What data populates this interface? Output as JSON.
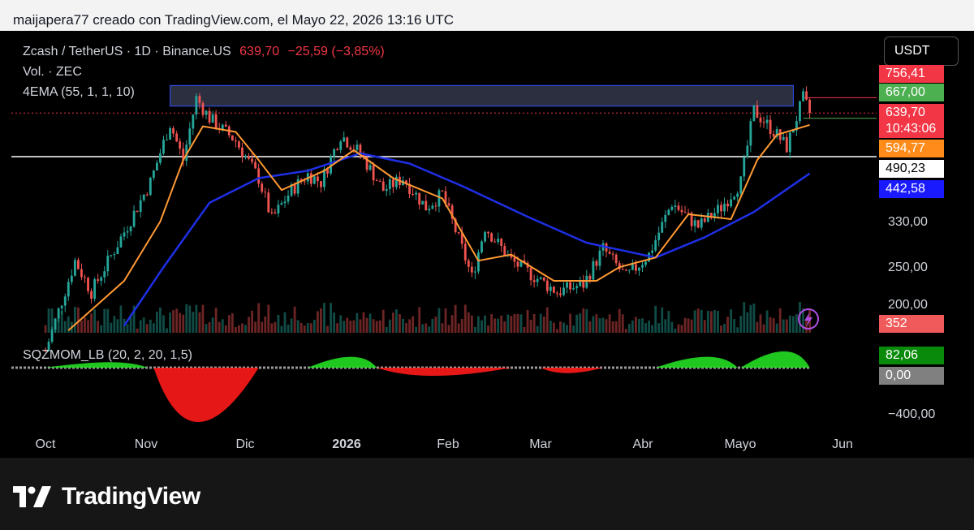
{
  "header": {
    "attribution": "maijapera77 creado con TradingView.com, el Mayo 22, 2026 13:16 UTC"
  },
  "legend": {
    "symbol": "Zcash / TetherUS · 1D · Binance.US",
    "price": "639,70",
    "change": "−25,59 (−3,85%)",
    "volume": "Vol. · ZEC",
    "ema": "4EMA (55, 1, 1, 10)",
    "squeeze": "SQZMOM_LB (20, 2, 20, 1,5)"
  },
  "currency_button": "USDT",
  "price_tags": [
    {
      "label": "756,41",
      "bg": "#f23645",
      "color": "#ffffff"
    },
    {
      "label": "667,00",
      "bg": "#4caf50",
      "color": "#ffffff"
    },
    {
      "label": "639,70",
      "bg": "#f23645",
      "color": "#ffffff"
    },
    {
      "label": "10:43:06",
      "bg": "#f23645",
      "color": "#ffffff"
    },
    {
      "label": "594,77",
      "bg": "#ff8c1a",
      "color": "#ffffff"
    },
    {
      "label": "490,23",
      "bg": "#ffffff",
      "color": "#000000"
    },
    {
      "label": "442,58",
      "bg": "#1a1aff",
      "color": "#ffffff"
    },
    {
      "label": "352",
      "bg": "#f05a5a",
      "color": "#ffffff"
    }
  ],
  "price_axis_ticks": [
    "330,00",
    "250,00",
    "200,00"
  ],
  "osc_tags": [
    {
      "label": "82,06",
      "bg": "#0a8a0a",
      "color": "#ffffff"
    },
    {
      "label": "0,00",
      "bg": "#808080",
      "color": "#ffffff"
    }
  ],
  "osc_axis_ticks": [
    "−400,00"
  ],
  "x_axis": [
    {
      "label": "Oct",
      "bold": false
    },
    {
      "label": "Nov",
      "bold": false
    },
    {
      "label": "Dic",
      "bold": false
    },
    {
      "label": "2026",
      "bold": true
    },
    {
      "label": "Feb",
      "bold": false
    },
    {
      "label": "Mar",
      "bold": false
    },
    {
      "label": "Abr",
      "bold": false
    },
    {
      "label": "Mayo",
      "bold": false
    },
    {
      "label": "Jun",
      "bold": false
    }
  ],
  "brand": "TradingView",
  "colors": {
    "up": "#26a69a",
    "down": "#ef5350",
    "ema_fast": "#ff9933",
    "ema_slow": "#1f2fe6",
    "zone": "#3a3f55",
    "zone_border": "#3050ff",
    "sqz_pos": "#22dd22",
    "sqz_neg": "#ff1a1a"
  },
  "chart_data": {
    "type": "candlestick",
    "price_scale": "log",
    "key_levels": {
      "zone_top": 756.41,
      "zone_bottom": 667.0,
      "last_price": 639.7,
      "support": 490.23,
      "ema_fast": 594.77,
      "ema_slow": 442.58
    },
    "price_close_path": [
      {
        "date": "2025-10-01",
        "price": 150
      },
      {
        "date": "2025-10-10",
        "price": 260
      },
      {
        "date": "2025-10-15",
        "price": 215
      },
      {
        "date": "2025-10-25",
        "price": 310
      },
      {
        "date": "2025-11-02",
        "price": 420
      },
      {
        "date": "2025-11-08",
        "price": 600
      },
      {
        "date": "2025-11-12",
        "price": 480
      },
      {
        "date": "2025-11-16",
        "price": 700
      },
      {
        "date": "2025-11-20",
        "price": 620
      },
      {
        "date": "2025-11-28",
        "price": 540
      },
      {
        "date": "2025-12-05",
        "price": 430
      },
      {
        "date": "2025-12-09",
        "price": 335
      },
      {
        "date": "2025-12-15",
        "price": 400
      },
      {
        "date": "2025-12-20",
        "price": 440
      },
      {
        "date": "2025-12-24",
        "price": 420
      },
      {
        "date": "2025-12-30",
        "price": 560
      },
      {
        "date": "2026-01-05",
        "price": 500
      },
      {
        "date": "2026-01-12",
        "price": 400
      },
      {
        "date": "2026-01-18",
        "price": 430
      },
      {
        "date": "2026-01-25",
        "price": 360
      },
      {
        "date": "2026-01-30",
        "price": 390
      },
      {
        "date": "2026-02-05",
        "price": 280
      },
      {
        "date": "2026-02-08",
        "price": 235
      },
      {
        "date": "2026-02-12",
        "price": 320
      },
      {
        "date": "2026-02-20",
        "price": 260
      },
      {
        "date": "2026-03-01",
        "price": 230
      },
      {
        "date": "2026-03-06",
        "price": 215
      },
      {
        "date": "2026-03-14",
        "price": 225
      },
      {
        "date": "2026-03-20",
        "price": 280
      },
      {
        "date": "2026-03-27",
        "price": 235
      },
      {
        "date": "2026-04-03",
        "price": 270
      },
      {
        "date": "2026-04-10",
        "price": 370
      },
      {
        "date": "2026-04-18",
        "price": 320
      },
      {
        "date": "2026-04-25",
        "price": 360
      },
      {
        "date": "2026-05-01",
        "price": 420
      },
      {
        "date": "2026-05-05",
        "price": 650
      },
      {
        "date": "2026-05-12",
        "price": 560
      },
      {
        "date": "2026-05-15",
        "price": 520
      },
      {
        "date": "2026-05-20",
        "price": 700
      },
      {
        "date": "2026-05-22",
        "price": 639.7
      }
    ],
    "ema_fast_path": [
      {
        "date": "2025-10-08",
        "price": 170
      },
      {
        "date": "2025-10-25",
        "price": 230
      },
      {
        "date": "2025-11-05",
        "price": 330
      },
      {
        "date": "2025-11-12",
        "price": 480
      },
      {
        "date": "2025-11-18",
        "price": 590
      },
      {
        "date": "2025-11-28",
        "price": 570
      },
      {
        "date": "2025-12-05",
        "price": 480
      },
      {
        "date": "2025-12-12",
        "price": 400
      },
      {
        "date": "2025-12-25",
        "price": 450
      },
      {
        "date": "2026-01-03",
        "price": 510
      },
      {
        "date": "2026-01-15",
        "price": 430
      },
      {
        "date": "2026-01-30",
        "price": 380
      },
      {
        "date": "2026-02-10",
        "price": 260
      },
      {
        "date": "2026-02-20",
        "price": 270
      },
      {
        "date": "2026-03-05",
        "price": 230
      },
      {
        "date": "2026-03-18",
        "price": 230
      },
      {
        "date": "2026-03-25",
        "price": 250
      },
      {
        "date": "2026-04-05",
        "price": 265
      },
      {
        "date": "2026-04-15",
        "price": 345
      },
      {
        "date": "2026-04-28",
        "price": 335
      },
      {
        "date": "2026-05-06",
        "price": 480
      },
      {
        "date": "2026-05-12",
        "price": 560
      },
      {
        "date": "2026-05-22",
        "price": 594.77
      }
    ],
    "ema_slow_path": [
      {
        "date": "2025-10-25",
        "price": 175
      },
      {
        "date": "2025-11-06",
        "price": 250
      },
      {
        "date": "2025-11-20",
        "price": 370
      },
      {
        "date": "2025-12-05",
        "price": 430
      },
      {
        "date": "2025-12-20",
        "price": 450
      },
      {
        "date": "2026-01-05",
        "price": 500
      },
      {
        "date": "2026-01-20",
        "price": 470
      },
      {
        "date": "2026-02-05",
        "price": 410
      },
      {
        "date": "2026-02-25",
        "price": 340
      },
      {
        "date": "2026-03-15",
        "price": 290
      },
      {
        "date": "2026-04-05",
        "price": 265
      },
      {
        "date": "2026-04-20",
        "price": 300
      },
      {
        "date": "2026-05-05",
        "price": 350
      },
      {
        "date": "2026-05-22",
        "price": 442.58
      }
    ],
    "volume_last": 352,
    "squeeze_momentum": {
      "last": 82.06,
      "zero": 0,
      "axis_min_label": -400,
      "segments": [
        {
          "from": "2025-10-01",
          "to": "2025-11-01",
          "peak": 40
        },
        {
          "from": "2025-11-03",
          "to": "2025-12-05",
          "peak": -400
        },
        {
          "from": "2025-12-20",
          "to": "2026-01-10",
          "peak": 80
        },
        {
          "from": "2026-01-10",
          "to": "2026-02-20",
          "peak": -60
        },
        {
          "from": "2026-03-01",
          "to": "2026-03-20",
          "peak": -40
        },
        {
          "from": "2026-04-05",
          "to": "2026-04-30",
          "peak": 80
        },
        {
          "from": "2026-05-01",
          "to": "2026-05-22",
          "peak": 120
        }
      ]
    }
  }
}
